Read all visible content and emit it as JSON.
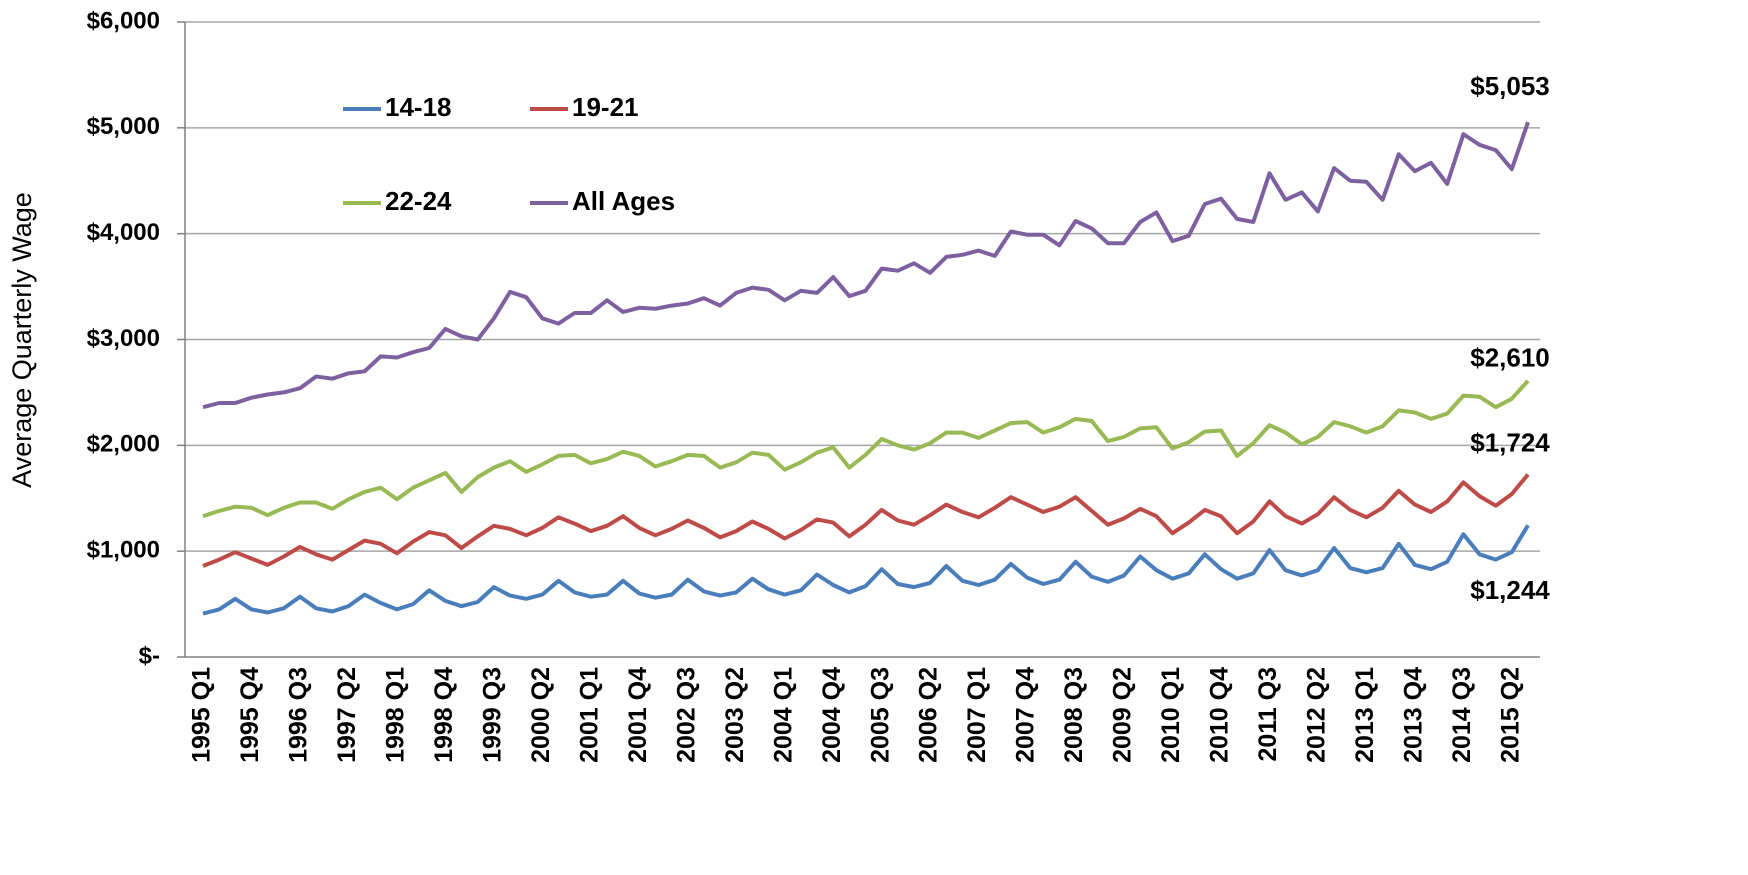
{
  "chart_data": {
    "type": "line",
    "y_label": "Average Quarterly Wage",
    "categories": [
      "1995 Q1",
      null,
      null,
      "1995 Q4",
      null,
      null,
      "1996 Q3",
      null,
      null,
      "1997 Q2",
      null,
      null,
      "1998 Q1",
      null,
      null,
      "1998 Q4",
      null,
      null,
      "1999 Q3",
      null,
      null,
      "2000 Q2",
      null,
      null,
      "2001 Q1",
      null,
      null,
      "2001 Q4",
      null,
      null,
      "2002 Q3",
      null,
      null,
      "2003 Q2",
      null,
      null,
      "2004 Q1",
      null,
      null,
      "2004 Q4",
      null,
      null,
      "2005 Q3",
      null,
      null,
      "2006 Q2",
      null,
      null,
      "2007 Q1",
      null,
      null,
      "2007 Q4",
      null,
      null,
      "2008 Q3",
      null,
      null,
      "2009 Q2",
      null,
      null,
      "2010 Q1",
      null,
      null,
      "2010 Q4",
      null,
      null,
      "2011 Q3",
      null,
      null,
      "2012 Q2",
      null,
      null,
      "2013 Q1",
      null,
      null,
      "2013 Q4",
      null,
      null,
      "2014 Q3",
      null,
      null,
      "2015 Q2",
      null
    ],
    "series": [
      {
        "name": "14-18",
        "color": "#4a7ebb",
        "values": [
          410,
          450,
          550,
          450,
          420,
          460,
          570,
          460,
          430,
          480,
          590,
          510,
          450,
          500,
          630,
          530,
          480,
          520,
          660,
          580,
          550,
          590,
          720,
          610,
          570,
          590,
          720,
          600,
          560,
          590,
          730,
          620,
          580,
          610,
          740,
          640,
          590,
          630,
          780,
          680,
          610,
          670,
          830,
          690,
          660,
          700,
          860,
          720,
          680,
          730,
          880,
          750,
          690,
          730,
          900,
          760,
          710,
          770,
          950,
          820,
          740,
          790,
          970,
          830,
          740,
          790,
          1010,
          820,
          770,
          820,
          1030,
          840,
          800,
          840,
          1070,
          870,
          830,
          900,
          1160,
          970,
          920,
          990,
          1244
        ],
        "value_labels": [
          null,
          null,
          null,
          null,
          null,
          null,
          null,
          null,
          null,
          null,
          null,
          null,
          null,
          null,
          null,
          null,
          null,
          null,
          null,
          null,
          null,
          null,
          null,
          null,
          null,
          null,
          null,
          null,
          null,
          null,
          null,
          null,
          null,
          null,
          null,
          null,
          null,
          null,
          null,
          null,
          null,
          null,
          null,
          null,
          null,
          null,
          null,
          null,
          null,
          null,
          null,
          null,
          null,
          null,
          null,
          null,
          null,
          null,
          null,
          null,
          null,
          null,
          null,
          null,
          null,
          null,
          null,
          null,
          null,
          null,
          null,
          null,
          null,
          null,
          null,
          null,
          null,
          null,
          null,
          null,
          null,
          null,
          "$1,244"
        ]
      },
      {
        "name": "19-21",
        "color": "#be4b48",
        "values": [
          860,
          920,
          990,
          930,
          870,
          950,
          1040,
          970,
          920,
          1010,
          1100,
          1070,
          980,
          1090,
          1180,
          1150,
          1030,
          1140,
          1240,
          1210,
          1150,
          1220,
          1320,
          1260,
          1190,
          1240,
          1330,
          1220,
          1150,
          1210,
          1290,
          1220,
          1130,
          1190,
          1280,
          1210,
          1120,
          1200,
          1300,
          1270,
          1140,
          1250,
          1390,
          1290,
          1250,
          1340,
          1440,
          1370,
          1320,
          1410,
          1510,
          1440,
          1370,
          1420,
          1510,
          1380,
          1250,
          1310,
          1400,
          1330,
          1170,
          1270,
          1390,
          1330,
          1170,
          1280,
          1470,
          1330,
          1260,
          1350,
          1510,
          1390,
          1320,
          1410,
          1570,
          1440,
          1370,
          1470,
          1650,
          1520,
          1430,
          1540,
          1724
        ],
        "value_labels": [
          null,
          null,
          null,
          null,
          null,
          null,
          null,
          null,
          null,
          null,
          null,
          null,
          null,
          null,
          null,
          null,
          null,
          null,
          null,
          null,
          null,
          null,
          null,
          null,
          null,
          null,
          null,
          null,
          null,
          null,
          null,
          null,
          null,
          null,
          null,
          null,
          null,
          null,
          null,
          null,
          null,
          null,
          null,
          null,
          null,
          null,
          null,
          null,
          null,
          null,
          null,
          null,
          null,
          null,
          null,
          null,
          null,
          null,
          null,
          null,
          null,
          null,
          null,
          null,
          null,
          null,
          null,
          null,
          null,
          null,
          null,
          null,
          null,
          null,
          null,
          null,
          null,
          null,
          null,
          null,
          null,
          null,
          "$1,724"
        ]
      },
      {
        "name": "22-24",
        "color": "#98b954",
        "values": [
          1330,
          1380,
          1420,
          1410,
          1340,
          1410,
          1460,
          1460,
          1400,
          1490,
          1560,
          1600,
          1490,
          1600,
          1670,
          1740,
          1560,
          1700,
          1790,
          1850,
          1750,
          1820,
          1900,
          1910,
          1830,
          1870,
          1940,
          1900,
          1800,
          1850,
          1910,
          1900,
          1790,
          1840,
          1930,
          1910,
          1770,
          1840,
          1930,
          1980,
          1790,
          1910,
          2060,
          2000,
          1960,
          2020,
          2120,
          2120,
          2070,
          2140,
          2210,
          2220,
          2120,
          2170,
          2250,
          2230,
          2040,
          2080,
          2160,
          2170,
          1970,
          2030,
          2130,
          2140,
          1900,
          2020,
          2190,
          2120,
          2010,
          2080,
          2220,
          2180,
          2120,
          2180,
          2330,
          2310,
          2250,
          2300,
          2470,
          2460,
          2360,
          2440,
          2610
        ],
        "value_labels": [
          null,
          null,
          null,
          null,
          null,
          null,
          null,
          null,
          null,
          null,
          null,
          null,
          null,
          null,
          null,
          null,
          null,
          null,
          null,
          null,
          null,
          null,
          null,
          null,
          null,
          null,
          null,
          null,
          null,
          null,
          null,
          null,
          null,
          null,
          null,
          null,
          null,
          null,
          null,
          null,
          null,
          null,
          null,
          null,
          null,
          null,
          null,
          null,
          null,
          null,
          null,
          null,
          null,
          null,
          null,
          null,
          null,
          null,
          null,
          null,
          null,
          null,
          null,
          null,
          null,
          null,
          null,
          null,
          null,
          null,
          null,
          null,
          null,
          null,
          null,
          null,
          null,
          null,
          null,
          null,
          null,
          null,
          "$2,610"
        ]
      },
      {
        "name": "All Ages",
        "color": "#7d60a0",
        "values": [
          2360,
          2400,
          2400,
          2450,
          2480,
          2500,
          2540,
          2650,
          2630,
          2680,
          2700,
          2840,
          2830,
          2880,
          2920,
          3100,
          3030,
          3000,
          3200,
          3450,
          3400,
          3200,
          3150,
          3250,
          3250,
          3370,
          3260,
          3300,
          3290,
          3320,
          3340,
          3390,
          3320,
          3440,
          3490,
          3470,
          3370,
          3460,
          3440,
          3590,
          3410,
          3460,
          3670,
          3650,
          3720,
          3630,
          3780,
          3800,
          3840,
          3790,
          4020,
          3990,
          3990,
          3890,
          4120,
          4050,
          3910,
          3910,
          4110,
          4200,
          3930,
          3980,
          4280,
          4330,
          4140,
          4110,
          4570,
          4320,
          4390,
          4210,
          4620,
          4500,
          4490,
          4320,
          4750,
          4590,
          4670,
          4470,
          4940,
          4840,
          4790,
          4610,
          5053
        ],
        "value_labels": [
          null,
          null,
          null,
          null,
          null,
          null,
          null,
          null,
          null,
          null,
          null,
          null,
          null,
          null,
          null,
          null,
          null,
          null,
          null,
          null,
          null,
          null,
          null,
          null,
          null,
          null,
          null,
          null,
          null,
          null,
          null,
          null,
          null,
          null,
          null,
          null,
          null,
          null,
          null,
          null,
          null,
          null,
          null,
          null,
          null,
          null,
          null,
          null,
          null,
          null,
          null,
          null,
          null,
          null,
          null,
          null,
          null,
          null,
          null,
          null,
          null,
          null,
          null,
          null,
          null,
          null,
          null,
          null,
          null,
          null,
          null,
          null,
          null,
          null,
          null,
          null,
          null,
          null,
          null,
          null,
          null,
          null,
          "$5,053"
        ]
      }
    ],
    "ylim": [
      0,
      6000
    ],
    "yticks": [
      {
        "value": 0,
        "label": "$-"
      },
      {
        "value": 1000,
        "label": "$1,000"
      },
      {
        "value": 2000,
        "label": "$2,000"
      },
      {
        "value": 3000,
        "label": "$3,000"
      },
      {
        "value": 4000,
        "label": "$4,000"
      },
      {
        "value": 5000,
        "label": "$5,000"
      },
      {
        "value": 6000,
        "label": "$6,000"
      }
    ],
    "grid": true,
    "legend": "upper left"
  }
}
